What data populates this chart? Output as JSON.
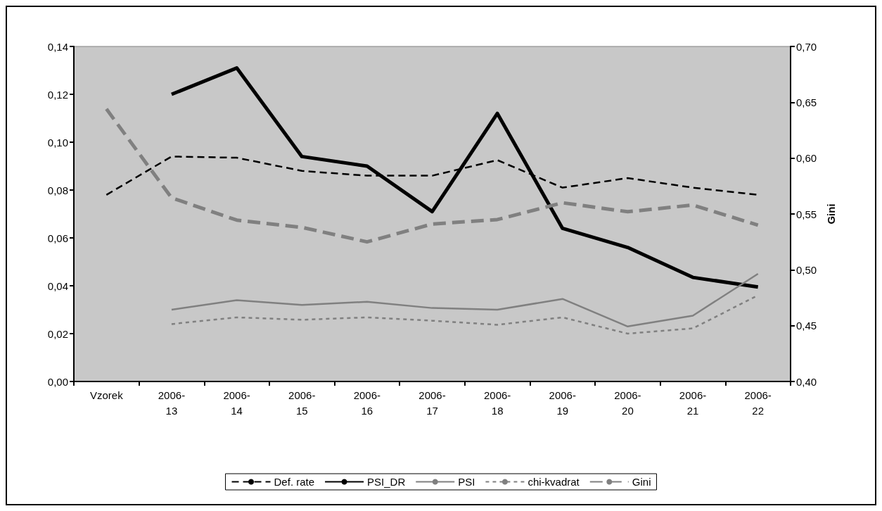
{
  "chart_data": {
    "type": "line",
    "categories": [
      "Vzorek",
      "2006-13",
      "2006-14",
      "2006-15",
      "2006-16",
      "2006-17",
      "2006-18",
      "2006-19",
      "2006-20",
      "2006-21",
      "2006-22"
    ],
    "series": [
      {
        "name": "Def. rate",
        "color": "#000000",
        "line_style": "dashed",
        "values": [
          0.078,
          0.094,
          0.0935,
          0.088,
          0.086,
          0.086,
          0.0925,
          0.081,
          0.085,
          0.081,
          0.078
        ]
      },
      {
        "name": "PSI_DR",
        "color": "#000000",
        "line_style": "solid",
        "values": [
          null,
          0.12,
          0.131,
          0.094,
          0.09,
          0.071,
          0.112,
          0.064,
          0.056,
          0.0435,
          0.0395
        ]
      },
      {
        "name": "PSI",
        "color": "#808080",
        "line_style": "solid",
        "values": [
          null,
          0.03,
          0.034,
          0.032,
          0.0333,
          0.0307,
          0.03,
          0.0345,
          0.023,
          0.0275,
          0.045
        ]
      },
      {
        "name": "chi-kvadrat",
        "color": "#808080",
        "line_style": "dotted",
        "values": [
          null,
          0.024,
          0.0268,
          0.0258,
          0.0268,
          0.0254,
          0.0237,
          0.0268,
          0.02,
          0.0222,
          0.036
        ]
      },
      {
        "name": "Gini",
        "color": "#808080",
        "line_style": "dashed",
        "axis": "y2",
        "values": [
          0.644,
          0.5645,
          0.5445,
          0.538,
          0.525,
          0.541,
          0.545,
          0.56,
          0.552,
          0.558,
          0.54
        ]
      }
    ],
    "ylim": [
      0,
      0.14
    ],
    "yticks": [
      {
        "value": 0,
        "label": "0,00"
      },
      {
        "value": 0.02,
        "label": "0,02"
      },
      {
        "value": 0.04,
        "label": "0,04"
      },
      {
        "value": 0.06,
        "label": "0,06"
      },
      {
        "value": 0.08,
        "label": "0,08"
      },
      {
        "value": 0.1,
        "label": "0,10"
      },
      {
        "value": 0.12,
        "label": "0,12"
      },
      {
        "value": 0.14,
        "label": "0,14"
      }
    ],
    "y2label": "Gini",
    "y2lim": [
      0.4,
      0.7
    ],
    "y2ticks": [
      {
        "value": 0.4,
        "label": "0,40"
      },
      {
        "value": 0.45,
        "label": "0,45"
      },
      {
        "value": 0.5,
        "label": "0,50"
      },
      {
        "value": 0.55,
        "label": "0,55"
      },
      {
        "value": 0.6,
        "label": "0,60"
      },
      {
        "value": 0.65,
        "label": "0,65"
      },
      {
        "value": 0.7,
        "label": "0,70"
      }
    ],
    "grid": false,
    "legend": "bottom",
    "marker": "none"
  }
}
